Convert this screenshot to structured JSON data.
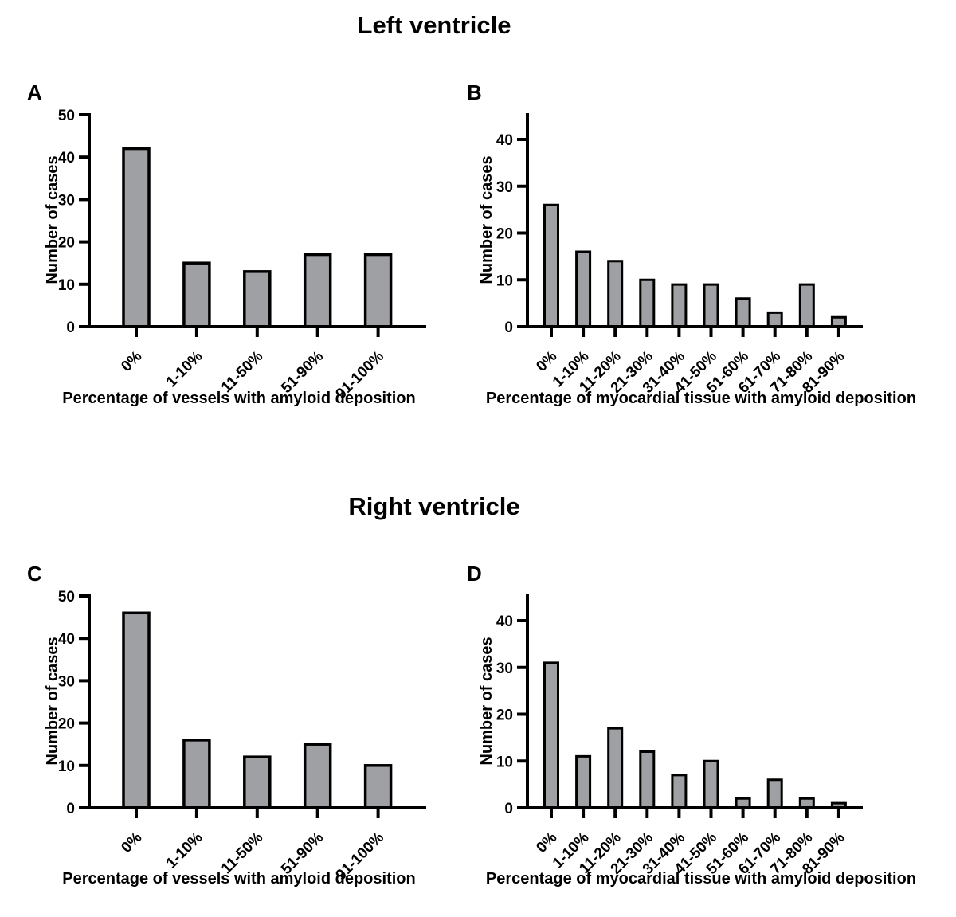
{
  "background_color": "#ffffff",
  "sections": [
    {
      "title": "Left ventricle"
    },
    {
      "title": "Right ventricle"
    }
  ],
  "chart_data": [
    {
      "panel": "A",
      "section": "Left ventricle",
      "type": "bar",
      "categories": [
        "0%",
        "1-10%",
        "11-50%",
        "51-90%",
        "91-100%"
      ],
      "values": [
        42,
        15,
        13,
        17,
        17
      ],
      "xlabel": "Percentage of vessels with amyloid deposition",
      "ylabel": "Number of cases",
      "ylim": [
        0,
        50
      ],
      "yticks": [
        0,
        10,
        20,
        30,
        40,
        50
      ],
      "x_tick_rotation": 45,
      "grid": false,
      "legend": "none",
      "bar_color": "#9fa0a4",
      "bar_outline": "#000000",
      "axis_color": "#000000"
    },
    {
      "panel": "B",
      "section": "Left ventricle",
      "type": "bar",
      "categories": [
        "0%",
        "1-10%",
        "11-20%",
        "21-30%",
        "31-40%",
        "41-50%",
        "51-60%",
        "61-70%",
        "71-80%",
        "81-90%"
      ],
      "values": [
        26,
        16,
        14,
        10,
        9,
        9,
        6,
        3,
        9,
        2
      ],
      "xlabel": "Percentage of myocardial tissue with amyloid deposition",
      "ylabel": "Number of cases",
      "ylim": [
        0,
        45
      ],
      "yticks": [
        0,
        10,
        20,
        30,
        40
      ],
      "x_tick_rotation": 45,
      "grid": false,
      "legend": "none",
      "bar_color": "#9fa0a4",
      "bar_outline": "#000000",
      "axis_color": "#000000"
    },
    {
      "panel": "C",
      "section": "Right ventricle",
      "type": "bar",
      "categories": [
        "0%",
        "1-10%",
        "11-50%",
        "51-90%",
        "91-100%"
      ],
      "values": [
        46,
        16,
        12,
        15,
        10
      ],
      "xlabel": "Percentage of vessels with amyloid deposition",
      "ylabel": "Number of cases",
      "ylim": [
        0,
        50
      ],
      "yticks": [
        0,
        10,
        20,
        30,
        40,
        50
      ],
      "x_tick_rotation": 45,
      "grid": false,
      "legend": "none",
      "bar_color": "#9fa0a4",
      "bar_outline": "#000000",
      "axis_color": "#000000"
    },
    {
      "panel": "D",
      "section": "Right ventricle",
      "type": "bar",
      "categories": [
        "0%",
        "1-10%",
        "11-20%",
        "21-30%",
        "31-40%",
        "41-50%",
        "51-60%",
        "61-70%",
        "71-80%",
        "81-90%"
      ],
      "values": [
        31,
        11,
        17,
        12,
        7,
        10,
        2,
        6,
        2,
        1
      ],
      "xlabel": "Percentage of myocardial tissue with amyloid deposition",
      "ylabel": "Number of cases",
      "ylim": [
        0,
        45
      ],
      "yticks": [
        0,
        10,
        20,
        30,
        40
      ],
      "x_tick_rotation": 45,
      "grid": false,
      "legend": "none",
      "bar_color": "#9fa0a4",
      "bar_outline": "#000000",
      "axis_color": "#000000"
    }
  ]
}
